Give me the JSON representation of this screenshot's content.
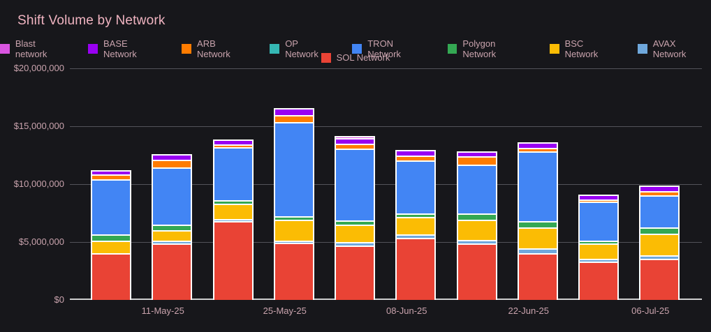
{
  "title": "Shift Volume by Network",
  "colors": {
    "background": "#17171b",
    "title_text": "#f0b4c1",
    "axis_text": "#c9a3ad",
    "legend_text": "#c9a3ad",
    "gridline": "#53535a",
    "axis_line": "#cfcfcf",
    "bar_border": "#ffffff"
  },
  "chart_data": {
    "type": "bar",
    "stacked": true,
    "title": "Shift Volume by Network",
    "grid": true,
    "legend_position": "top",
    "num_bars": 10,
    "y_axis": {
      "min": 0,
      "max": 20000000,
      "tick_step": 5000000,
      "tick_labels": [
        "$0",
        "$5,000,000",
        "$10,000,000",
        "$15,000,000",
        "$20,000,000"
      ]
    },
    "x_axis": {
      "tick_labels": [
        "11-May-25",
        "25-May-25",
        "08-Jun-25",
        "22-Jun-25",
        "06-Jul-25"
      ],
      "labeled_bar_indices": [
        1,
        3,
        5,
        7,
        9
      ]
    },
    "legend_rows": [
      [
        "Blast network",
        "BASE Network",
        "ARB Network",
        "OP Network",
        "TRON Network",
        "Polygon Network",
        "BSC Network",
        "AVAX Network"
      ],
      [
        "SOL Network"
      ]
    ],
    "stack_order_bottom_to_top": [
      "SOL Network",
      "AVAX Network",
      "BSC Network",
      "Polygon Network",
      "TRON Network",
      "OP Network",
      "ARB Network",
      "BASE Network",
      "Blast network"
    ],
    "series": [
      {
        "name": "Blast network",
        "color": "#d955e0",
        "values": [
          0,
          0,
          0,
          0,
          150000,
          0,
          0,
          0,
          0,
          0
        ]
      },
      {
        "name": "BASE Network",
        "color": "#9900f2",
        "values": [
          380000,
          480000,
          450000,
          620000,
          460000,
          470000,
          450000,
          480000,
          420000,
          500000
        ]
      },
      {
        "name": "ARB Network",
        "color": "#ff7c00",
        "values": [
          420000,
          650000,
          250000,
          600000,
          450000,
          420000,
          720000,
          320000,
          180000,
          380000
        ]
      },
      {
        "name": "OP Network",
        "color": "#35b8b4",
        "values": [
          0,
          0,
          0,
          0,
          0,
          0,
          0,
          0,
          0,
          0
        ]
      },
      {
        "name": "TRON Network",
        "color": "#4285f4",
        "values": [
          4750000,
          4950000,
          4600000,
          8150000,
          6200000,
          4550000,
          4200000,
          6050000,
          3350000,
          2750000
        ]
      },
      {
        "name": "Polygon Network",
        "color": "#34a853",
        "values": [
          550000,
          500000,
          330000,
          320000,
          360000,
          320000,
          520000,
          530000,
          260000,
          520000
        ]
      },
      {
        "name": "BSC Network",
        "color": "#fbbc04",
        "values": [
          1100000,
          920000,
          1300000,
          1800000,
          1500000,
          1480000,
          1750000,
          1780000,
          1350000,
          1880000
        ]
      },
      {
        "name": "AVAX Network",
        "color": "#6fa8dc",
        "values": [
          0,
          250000,
          180000,
          180000,
          330000,
          280000,
          320000,
          420000,
          260000,
          320000
        ]
      },
      {
        "name": "SOL Network",
        "color": "#e94335",
        "values": [
          4050000,
          4900000,
          6800000,
          4950000,
          4700000,
          5350000,
          4900000,
          4050000,
          3300000,
          3550000
        ]
      }
    ]
  }
}
